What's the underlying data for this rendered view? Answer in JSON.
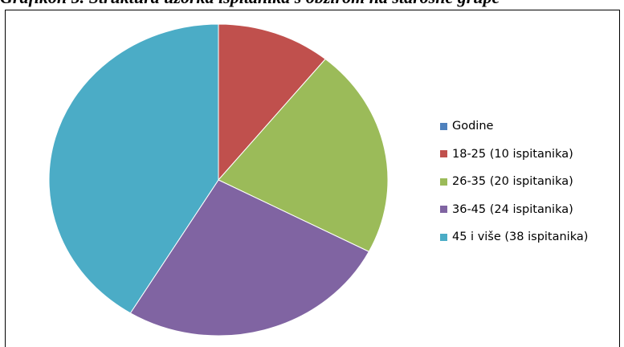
{
  "caption": "Grafikon 5. Struktura uzorka ispitanika s obzirom na starosne grupe",
  "chart_data": {
    "type": "pie",
    "title": "",
    "legend_position": "right",
    "series_name": "Godine",
    "series_color": "#4F81BD",
    "categories": [
      "18-25 (10 ispitanika)",
      "26-35 (20 ispitanika)",
      "36-45 (24 ispitanika)",
      "45 i više (38 ispitanika)"
    ],
    "values": [
      10,
      20,
      24,
      38
    ],
    "colors": [
      "#C0504D",
      "#9BBB59",
      "#8064A2",
      "#4BACC6"
    ]
  }
}
